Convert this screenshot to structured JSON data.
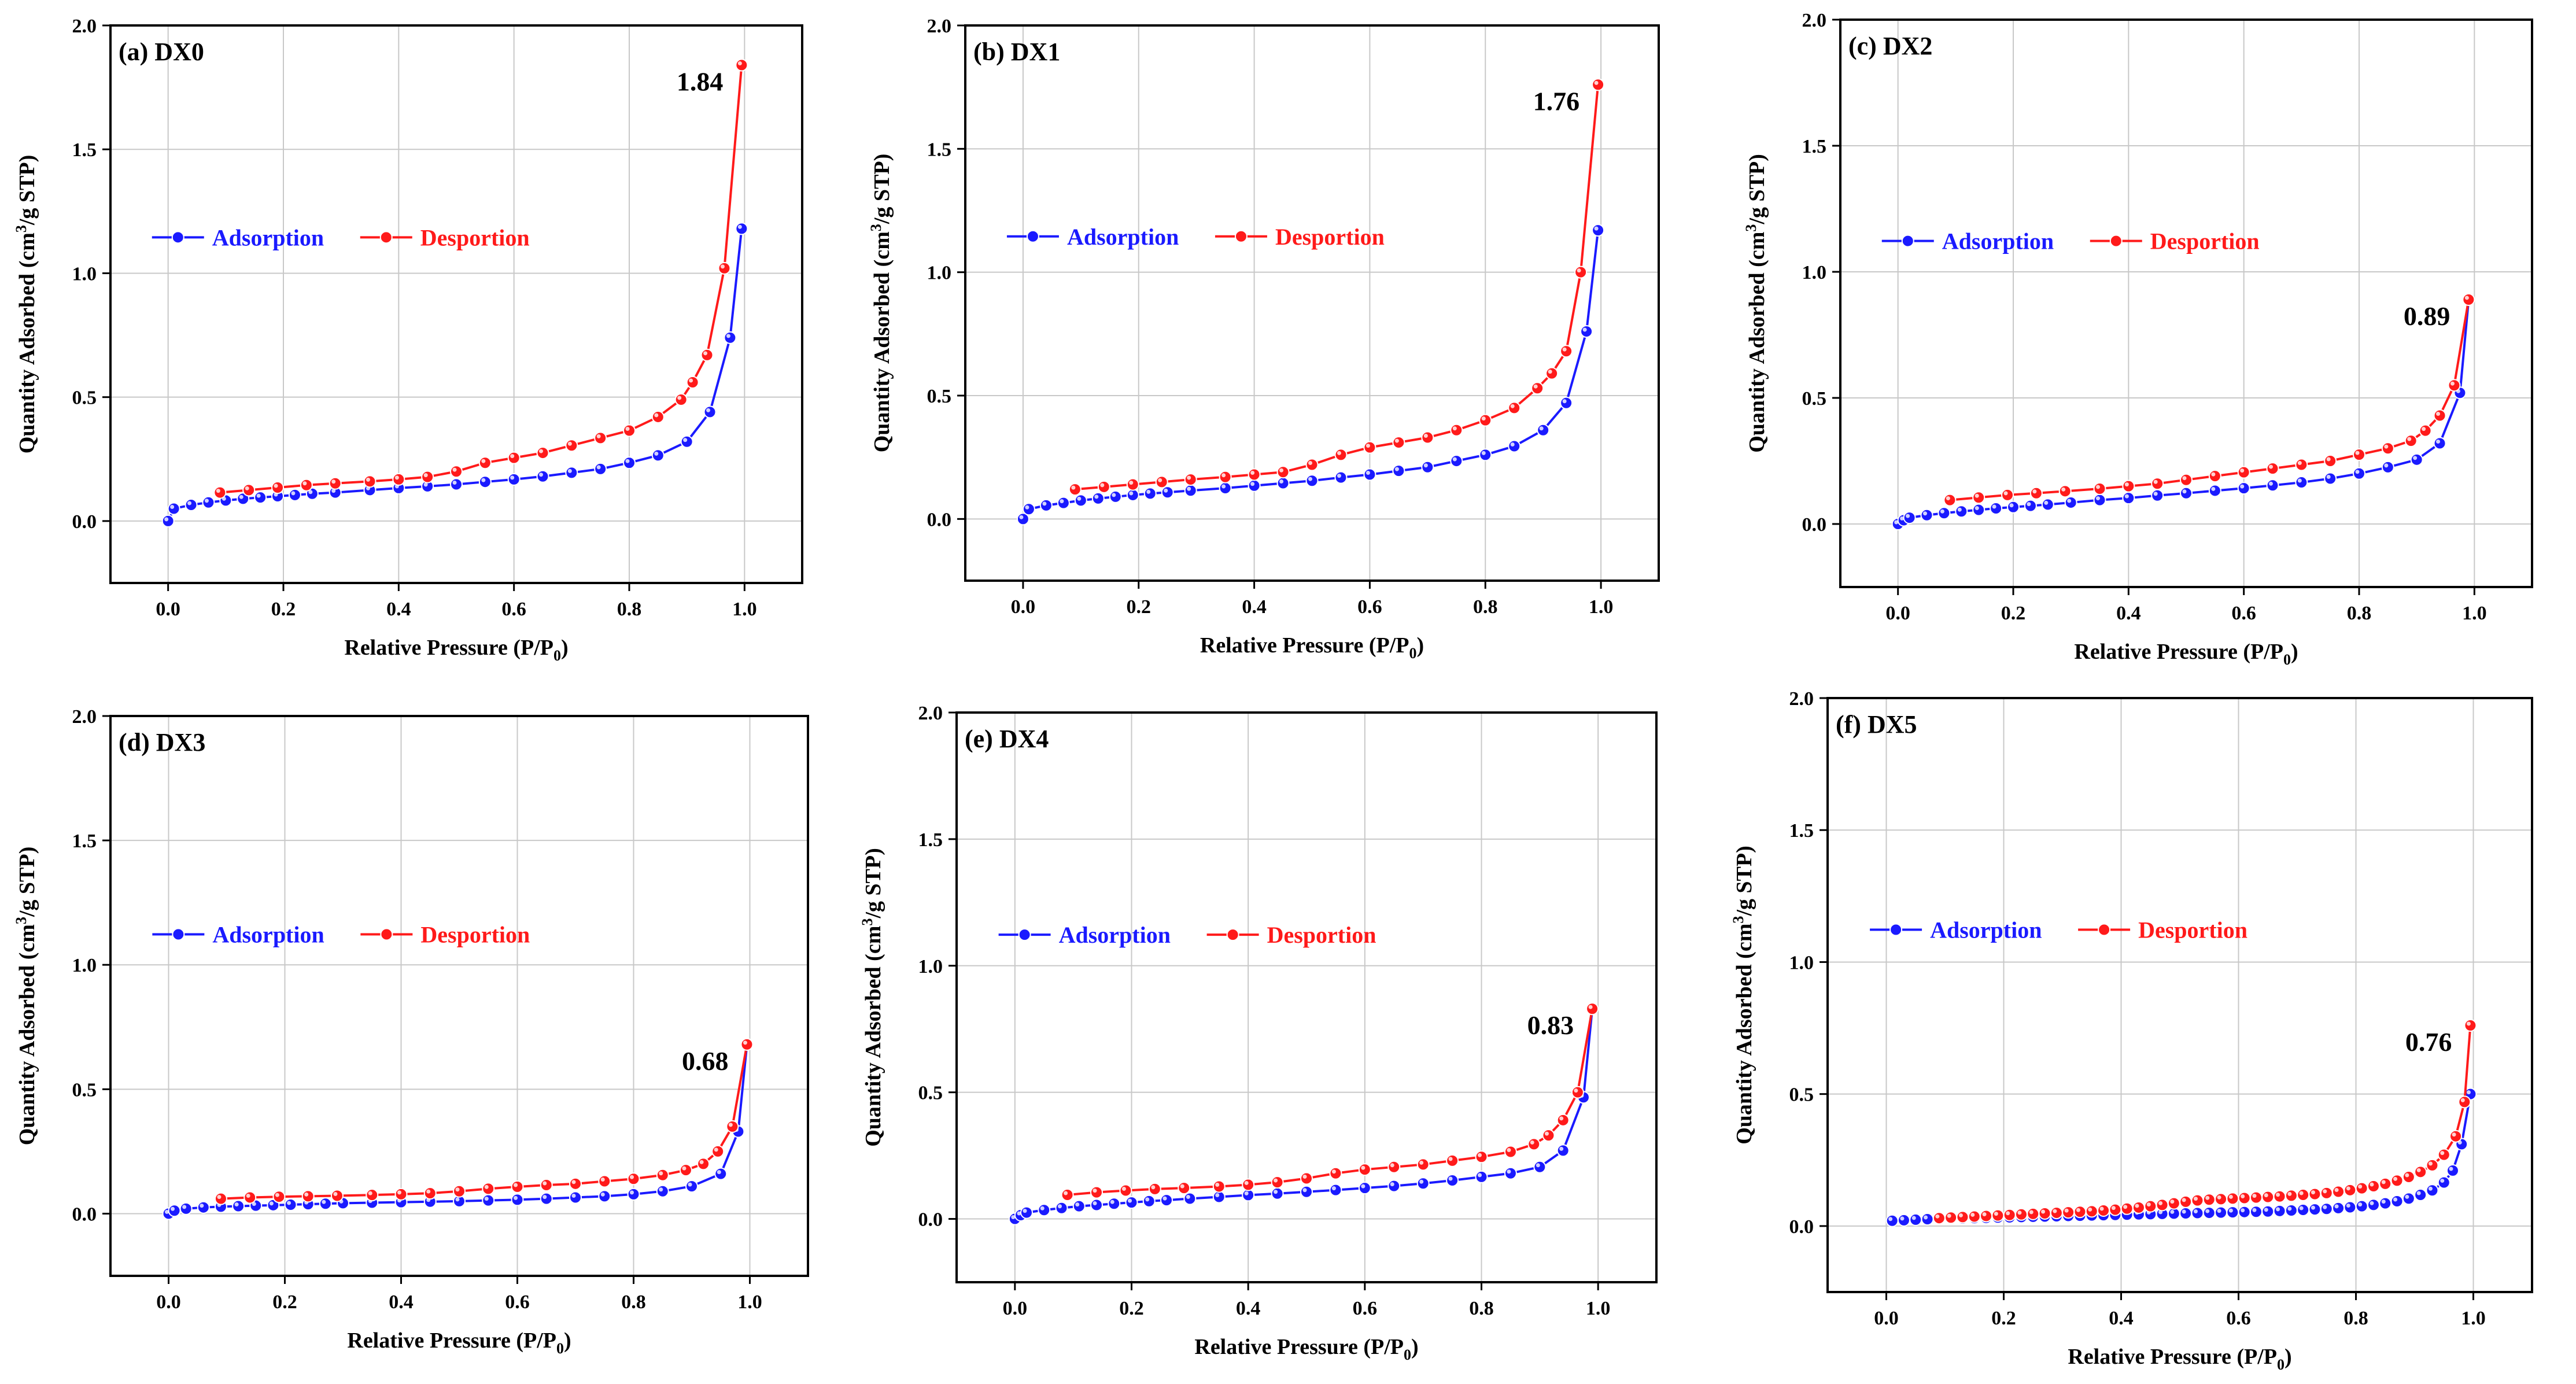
{
  "figure": {
    "colors": {
      "adsorption": "#1a1aff",
      "desorption": "#ff1a1a",
      "grid": "#c8c8c8",
      "axis": "#000000"
    }
  },
  "chart_data": [
    {
      "type": "line",
      "title": "(a) DX0",
      "xlabel": "Relative Pressure (P/P",
      "xlabel_sub": "0",
      "xlabel_tail": ")",
      "ylabel": "Quantity Adsorbed (cm",
      "ylabel_sup": "3",
      "ylabel_tail": "/g STP)",
      "xlim": [
        -0.1,
        1.1
      ],
      "ylim": [
        -0.25,
        2.0
      ],
      "x_ticks": [
        "0.0",
        "0.2",
        "0.4",
        "0.6",
        "0.8",
        "1.0"
      ],
      "y_ticks": [
        "0.0",
        "0.5",
        "1.0",
        "1.5",
        "2.0"
      ],
      "annotation": {
        "text": "1.84",
        "x": 0.995,
        "y": 1.84
      },
      "legend": [
        "Adsorption",
        "Desportion"
      ],
      "series": [
        {
          "name": "Adsorption",
          "x": [
            0.0,
            0.01,
            0.04,
            0.07,
            0.1,
            0.13,
            0.16,
            0.19,
            0.22,
            0.25,
            0.29,
            0.35,
            0.4,
            0.45,
            0.5,
            0.55,
            0.6,
            0.65,
            0.7,
            0.75,
            0.8,
            0.85,
            0.9,
            0.94,
            0.975,
            0.995
          ],
          "y": [
            0.0,
            0.05,
            0.065,
            0.075,
            0.083,
            0.09,
            0.095,
            0.1,
            0.105,
            0.11,
            0.115,
            0.125,
            0.133,
            0.14,
            0.148,
            0.158,
            0.168,
            0.18,
            0.195,
            0.21,
            0.235,
            0.265,
            0.32,
            0.44,
            0.74,
            1.18
          ]
        },
        {
          "name": "Desportion",
          "x": [
            0.09,
            0.14,
            0.19,
            0.24,
            0.29,
            0.35,
            0.4,
            0.45,
            0.5,
            0.55,
            0.6,
            0.65,
            0.7,
            0.75,
            0.8,
            0.85,
            0.89,
            0.91,
            0.935,
            0.965,
            0.995
          ],
          "y": [
            0.115,
            0.125,
            0.135,
            0.145,
            0.152,
            0.16,
            0.168,
            0.178,
            0.2,
            0.235,
            0.255,
            0.275,
            0.305,
            0.335,
            0.365,
            0.42,
            0.49,
            0.56,
            0.67,
            1.02,
            1.84
          ]
        }
      ]
    },
    {
      "type": "line",
      "title": "(b) DX1",
      "xlabel": "Relative Pressure (P/P",
      "xlabel_sub": "0",
      "xlabel_tail": ")",
      "ylabel": "Quantity Adsorbed (cm",
      "ylabel_sup": "3",
      "ylabel_tail": "/g STP)",
      "xlim": [
        -0.1,
        1.1
      ],
      "ylim": [
        -0.25,
        2.0
      ],
      "x_ticks": [
        "0.0",
        "0.2",
        "0.4",
        "0.6",
        "0.8",
        "1.0"
      ],
      "y_ticks": [
        "0.0",
        "0.5",
        "1.0",
        "1.5",
        "2.0"
      ],
      "annotation": {
        "text": "1.76",
        "x": 0.995,
        "y": 1.76
      },
      "legend": [
        "Adsorption",
        "Desportion"
      ],
      "series": [
        {
          "name": "Adsorption",
          "x": [
            0.0,
            0.01,
            0.04,
            0.07,
            0.1,
            0.13,
            0.16,
            0.19,
            0.22,
            0.25,
            0.29,
            0.35,
            0.4,
            0.45,
            0.5,
            0.55,
            0.6,
            0.65,
            0.7,
            0.75,
            0.8,
            0.85,
            0.9,
            0.94,
            0.975,
            0.995
          ],
          "y": [
            0.0,
            0.04,
            0.055,
            0.065,
            0.075,
            0.083,
            0.09,
            0.097,
            0.103,
            0.108,
            0.115,
            0.125,
            0.135,
            0.145,
            0.155,
            0.168,
            0.18,
            0.195,
            0.21,
            0.235,
            0.26,
            0.295,
            0.36,
            0.47,
            0.76,
            1.17
          ]
        },
        {
          "name": "Desportion",
          "x": [
            0.09,
            0.14,
            0.19,
            0.24,
            0.29,
            0.35,
            0.4,
            0.45,
            0.5,
            0.55,
            0.6,
            0.65,
            0.7,
            0.75,
            0.8,
            0.85,
            0.89,
            0.915,
            0.94,
            0.965,
            0.995
          ],
          "y": [
            0.12,
            0.13,
            0.14,
            0.15,
            0.16,
            0.17,
            0.18,
            0.19,
            0.22,
            0.26,
            0.29,
            0.31,
            0.33,
            0.36,
            0.4,
            0.45,
            0.53,
            0.59,
            0.68,
            1.0,
            1.76
          ]
        }
      ]
    },
    {
      "type": "line",
      "title": "(c) DX2",
      "xlabel": "Relative Pressure (P/P",
      "xlabel_sub": "0",
      "xlabel_tail": ")",
      "ylabel": "Quantity Adsorbed (cm",
      "ylabel_sup": "3",
      "ylabel_tail": "/g STP)",
      "xlim": [
        -0.1,
        1.1
      ],
      "ylim": [
        -0.25,
        2.0
      ],
      "x_ticks": [
        "0.0",
        "0.2",
        "0.4",
        "0.6",
        "0.8",
        "1.0"
      ],
      "y_ticks": [
        "0.0",
        "0.5",
        "1.0",
        "1.5",
        "2.0"
      ],
      "annotation": {
        "text": "0.89",
        "x": 0.99,
        "y": 0.89
      },
      "legend": [
        "Adsorption",
        "Desportion"
      ],
      "series": [
        {
          "name": "Adsorption",
          "x": [
            0.0,
            0.01,
            0.02,
            0.05,
            0.08,
            0.11,
            0.14,
            0.17,
            0.2,
            0.23,
            0.26,
            0.3,
            0.35,
            0.4,
            0.45,
            0.5,
            0.55,
            0.6,
            0.65,
            0.7,
            0.75,
            0.8,
            0.85,
            0.9,
            0.94,
            0.975,
            0.99
          ],
          "y": [
            0.0,
            0.015,
            0.025,
            0.035,
            0.043,
            0.05,
            0.056,
            0.062,
            0.067,
            0.072,
            0.077,
            0.085,
            0.095,
            0.103,
            0.113,
            0.122,
            0.132,
            0.142,
            0.153,
            0.165,
            0.18,
            0.2,
            0.225,
            0.255,
            0.32,
            0.52,
            0.89
          ]
        },
        {
          "name": "Desportion",
          "x": [
            0.09,
            0.14,
            0.19,
            0.24,
            0.29,
            0.35,
            0.4,
            0.45,
            0.5,
            0.55,
            0.6,
            0.65,
            0.7,
            0.75,
            0.8,
            0.85,
            0.89,
            0.915,
            0.94,
            0.965,
            0.99
          ],
          "y": [
            0.095,
            0.105,
            0.115,
            0.122,
            0.13,
            0.14,
            0.15,
            0.16,
            0.175,
            0.19,
            0.205,
            0.22,
            0.235,
            0.25,
            0.275,
            0.3,
            0.33,
            0.37,
            0.43,
            0.55,
            0.89
          ]
        }
      ]
    },
    {
      "type": "line",
      "title": "(d) DX3",
      "xlabel": "Relative Pressure (P/P",
      "xlabel_sub": "0",
      "xlabel_tail": ")",
      "ylabel": "Quantity Adsorbed (cm",
      "ylabel_sup": "3",
      "ylabel_tail": "/g STP)",
      "xlim": [
        -0.1,
        1.1
      ],
      "ylim": [
        -0.25,
        2.0
      ],
      "x_ticks": [
        "0.0",
        "0.2",
        "0.4",
        "0.6",
        "0.8",
        "1.0"
      ],
      "y_ticks": [
        "0.0",
        "0.5",
        "1.0",
        "1.5",
        "2.0"
      ],
      "annotation": {
        "text": "0.68",
        "x": 0.995,
        "y": 0.68
      },
      "legend": [
        "Adsorption",
        "Desportion"
      ],
      "series": [
        {
          "name": "Adsorption",
          "x": [
            0.0,
            0.01,
            0.03,
            0.06,
            0.09,
            0.12,
            0.15,
            0.18,
            0.21,
            0.24,
            0.27,
            0.3,
            0.35,
            0.4,
            0.45,
            0.5,
            0.55,
            0.6,
            0.65,
            0.7,
            0.75,
            0.8,
            0.85,
            0.9,
            0.95,
            0.98,
            0.995
          ],
          "y": [
            0.0,
            0.012,
            0.02,
            0.025,
            0.028,
            0.03,
            0.032,
            0.034,
            0.036,
            0.038,
            0.04,
            0.042,
            0.044,
            0.046,
            0.048,
            0.05,
            0.053,
            0.056,
            0.06,
            0.065,
            0.07,
            0.078,
            0.09,
            0.11,
            0.16,
            0.33,
            0.68
          ]
        },
        {
          "name": "Desportion",
          "x": [
            0.09,
            0.14,
            0.19,
            0.24,
            0.29,
            0.35,
            0.4,
            0.45,
            0.5,
            0.55,
            0.6,
            0.65,
            0.7,
            0.75,
            0.8,
            0.85,
            0.89,
            0.92,
            0.945,
            0.97,
            0.995
          ],
          "y": [
            0.06,
            0.065,
            0.068,
            0.07,
            0.072,
            0.075,
            0.078,
            0.082,
            0.09,
            0.1,
            0.108,
            0.115,
            0.12,
            0.13,
            0.14,
            0.155,
            0.175,
            0.2,
            0.25,
            0.35,
            0.68
          ]
        }
      ]
    },
    {
      "type": "line",
      "title": "(e) DX4",
      "xlabel": "Relative Pressure (P/P",
      "xlabel_sub": "0",
      "xlabel_tail": ")",
      "ylabel": "Quantity Adsorbed (cm",
      "ylabel_sup": "3",
      "ylabel_tail": "/g STP)",
      "xlim": [
        -0.1,
        1.1
      ],
      "ylim": [
        -0.25,
        2.0
      ],
      "x_ticks": [
        "0.0",
        "0.2",
        "0.4",
        "0.6",
        "0.8",
        "1.0"
      ],
      "y_ticks": [
        "0.0",
        "0.5",
        "1.0",
        "1.5",
        "2.0"
      ],
      "annotation": {
        "text": "0.83",
        "x": 0.99,
        "y": 0.83
      },
      "legend": [
        "Adsorption",
        "Desportion"
      ],
      "series": [
        {
          "name": "Adsorption",
          "x": [
            0.0,
            0.01,
            0.02,
            0.05,
            0.08,
            0.11,
            0.14,
            0.17,
            0.2,
            0.23,
            0.26,
            0.3,
            0.35,
            0.4,
            0.45,
            0.5,
            0.55,
            0.6,
            0.65,
            0.7,
            0.75,
            0.8,
            0.85,
            0.9,
            0.94,
            0.975,
            0.99
          ],
          "y": [
            0.0,
            0.015,
            0.025,
            0.035,
            0.043,
            0.05,
            0.055,
            0.06,
            0.065,
            0.07,
            0.074,
            0.08,
            0.087,
            0.094,
            0.1,
            0.107,
            0.114,
            0.122,
            0.13,
            0.14,
            0.152,
            0.166,
            0.18,
            0.205,
            0.27,
            0.48,
            0.83
          ]
        },
        {
          "name": "Desportion",
          "x": [
            0.09,
            0.14,
            0.19,
            0.24,
            0.29,
            0.35,
            0.4,
            0.45,
            0.5,
            0.55,
            0.6,
            0.65,
            0.7,
            0.75,
            0.8,
            0.85,
            0.89,
            0.915,
            0.94,
            0.965,
            0.99
          ],
          "y": [
            0.095,
            0.105,
            0.112,
            0.118,
            0.122,
            0.128,
            0.135,
            0.145,
            0.16,
            0.18,
            0.195,
            0.205,
            0.215,
            0.23,
            0.245,
            0.265,
            0.295,
            0.33,
            0.39,
            0.5,
            0.83
          ]
        }
      ]
    },
    {
      "type": "line",
      "title": "(f) DX5",
      "xlabel": "Relative Pressure (P/P",
      "xlabel_sub": "0",
      "xlabel_tail": ")",
      "ylabel": "Quantity Adsorbed (cm",
      "ylabel_sup": "3",
      "ylabel_tail": "/g STP)",
      "xlim": [
        -0.1,
        1.1
      ],
      "ylim": [
        -0.25,
        2.0
      ],
      "x_ticks": [
        "0.0",
        "0.2",
        "0.4",
        "0.6",
        "0.8",
        "1.0"
      ],
      "y_ticks": [
        "0.0",
        "0.5",
        "1.0",
        "1.5",
        "2.0"
      ],
      "annotation": {
        "text": "0.76",
        "x": 0.995,
        "y": 0.76
      },
      "legend": [
        "Adsorption",
        "Desportion"
      ],
      "series": [
        {
          "name": "Adsorption",
          "x": [
            0.01,
            0.03,
            0.05,
            0.07,
            0.09,
            0.11,
            0.13,
            0.15,
            0.17,
            0.19,
            0.21,
            0.23,
            0.25,
            0.27,
            0.29,
            0.31,
            0.33,
            0.35,
            0.37,
            0.39,
            0.41,
            0.43,
            0.45,
            0.47,
            0.49,
            0.51,
            0.53,
            0.55,
            0.57,
            0.59,
            0.61,
            0.63,
            0.65,
            0.67,
            0.69,
            0.71,
            0.73,
            0.75,
            0.77,
            0.79,
            0.81,
            0.83,
            0.85,
            0.87,
            0.89,
            0.91,
            0.93,
            0.95,
            0.965,
            0.98,
            0.995
          ],
          "y": [
            0.02,
            0.022,
            0.024,
            0.026,
            0.027,
            0.028,
            0.029,
            0.03,
            0.031,
            0.032,
            0.033,
            0.034,
            0.035,
            0.036,
            0.037,
            0.038,
            0.039,
            0.04,
            0.041,
            0.042,
            0.043,
            0.044,
            0.045,
            0.046,
            0.047,
            0.048,
            0.049,
            0.05,
            0.051,
            0.052,
            0.053,
            0.054,
            0.055,
            0.057,
            0.059,
            0.061,
            0.063,
            0.065,
            0.068,
            0.071,
            0.075,
            0.08,
            0.086,
            0.094,
            0.104,
            0.118,
            0.135,
            0.165,
            0.21,
            0.31,
            0.5
          ]
        },
        {
          "name": "Desportion",
          "x": [
            0.09,
            0.11,
            0.13,
            0.15,
            0.17,
            0.19,
            0.21,
            0.23,
            0.25,
            0.27,
            0.29,
            0.31,
            0.33,
            0.35,
            0.37,
            0.39,
            0.41,
            0.43,
            0.45,
            0.47,
            0.49,
            0.51,
            0.53,
            0.55,
            0.57,
            0.59,
            0.61,
            0.63,
            0.65,
            0.67,
            0.69,
            0.71,
            0.73,
            0.75,
            0.77,
            0.79,
            0.81,
            0.83,
            0.85,
            0.87,
            0.89,
            0.91,
            0.93,
            0.95,
            0.97,
            0.985,
            0.995
          ],
          "y": [
            0.03,
            0.032,
            0.034,
            0.036,
            0.038,
            0.04,
            0.042,
            0.044,
            0.046,
            0.048,
            0.05,
            0.052,
            0.054,
            0.056,
            0.059,
            0.062,
            0.066,
            0.07,
            0.075,
            0.08,
            0.086,
            0.092,
            0.097,
            0.1,
            0.102,
            0.104,
            0.106,
            0.108,
            0.11,
            0.112,
            0.115,
            0.118,
            0.121,
            0.125,
            0.13,
            0.136,
            0.143,
            0.151,
            0.16,
            0.172,
            0.186,
            0.205,
            0.23,
            0.27,
            0.34,
            0.47,
            0.76
          ]
        }
      ]
    }
  ]
}
